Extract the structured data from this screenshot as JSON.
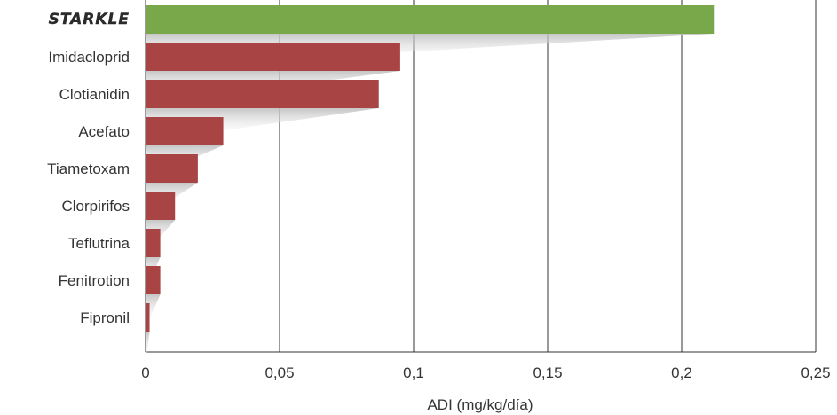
{
  "chart_data": {
    "type": "bar",
    "orientation": "horizontal",
    "categories": [
      "STARKLE",
      "Imidacloprid",
      "Clotianidin",
      "Acefato",
      "Tiametoxam",
      "Clorpirifos",
      "Teflutrina",
      "Fenitrotion",
      "Fipronil"
    ],
    "values": [
      0.212,
      0.095,
      0.087,
      0.029,
      0.0195,
      0.011,
      0.0055,
      0.0055,
      0.0015
    ],
    "xlabel": "ADI (mg/kg/día)",
    "ylabel": "",
    "xlim": [
      0,
      0.25
    ],
    "xticks": [
      0,
      0.05,
      0.1,
      0.15,
      0.2,
      0.25
    ],
    "xtick_labels": [
      "0",
      "0,05",
      "0,1",
      "0,15",
      "0,2",
      "0,25"
    ],
    "grid": "vertical",
    "legend": "none",
    "colors": {
      "highlight": "#79a84b",
      "default": "#a94444",
      "grid": "#333333"
    },
    "highlight_category": "STARKLE"
  }
}
